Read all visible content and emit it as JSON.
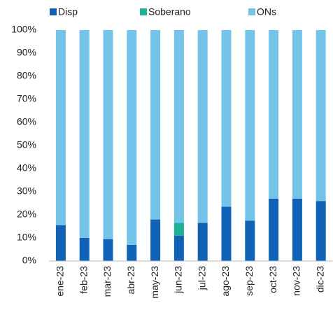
{
  "chart_data": {
    "type": "stacked_bar",
    "categories": [
      "ene-23",
      "feb-23",
      "mar-23",
      "abr-23",
      "may-23",
      "jun-23",
      "jul-23",
      "ago-23",
      "sep-23",
      "oct-23",
      "nov-23",
      "dic-23"
    ],
    "series": [
      {
        "name": "Disp",
        "color": "#1062b7",
        "values": [
          15.5,
          10,
          9.5,
          7,
          18,
          11,
          16.5,
          23.5,
          17.5,
          27,
          27,
          26
        ]
      },
      {
        "name": "Soberano",
        "color": "#1db394",
        "values": [
          0,
          0,
          0,
          0,
          0,
          5.5,
          0,
          0,
          0,
          0,
          0,
          0
        ]
      },
      {
        "name": "ONs",
        "color": "#74c4ea",
        "values": [
          84.5,
          90,
          90.5,
          93,
          82,
          83.5,
          83.5,
          76.5,
          82.5,
          73,
          73,
          74
        ]
      }
    ],
    "ylim": [
      0,
      100
    ],
    "yticks": [
      {
        "value": 0,
        "label": "0%"
      },
      {
        "value": 10,
        "label": "10%"
      },
      {
        "value": 20,
        "label": "20%"
      },
      {
        "value": 30,
        "label": "30%"
      },
      {
        "value": 40,
        "label": "40%"
      },
      {
        "value": 50,
        "label": "50%"
      },
      {
        "value": 60,
        "label": "60%"
      },
      {
        "value": 70,
        "label": "70%"
      },
      {
        "value": 80,
        "label": "80%"
      },
      {
        "value": 90,
        "label": "90%"
      },
      {
        "value": 100,
        "label": "100%"
      }
    ],
    "legend": "top"
  }
}
